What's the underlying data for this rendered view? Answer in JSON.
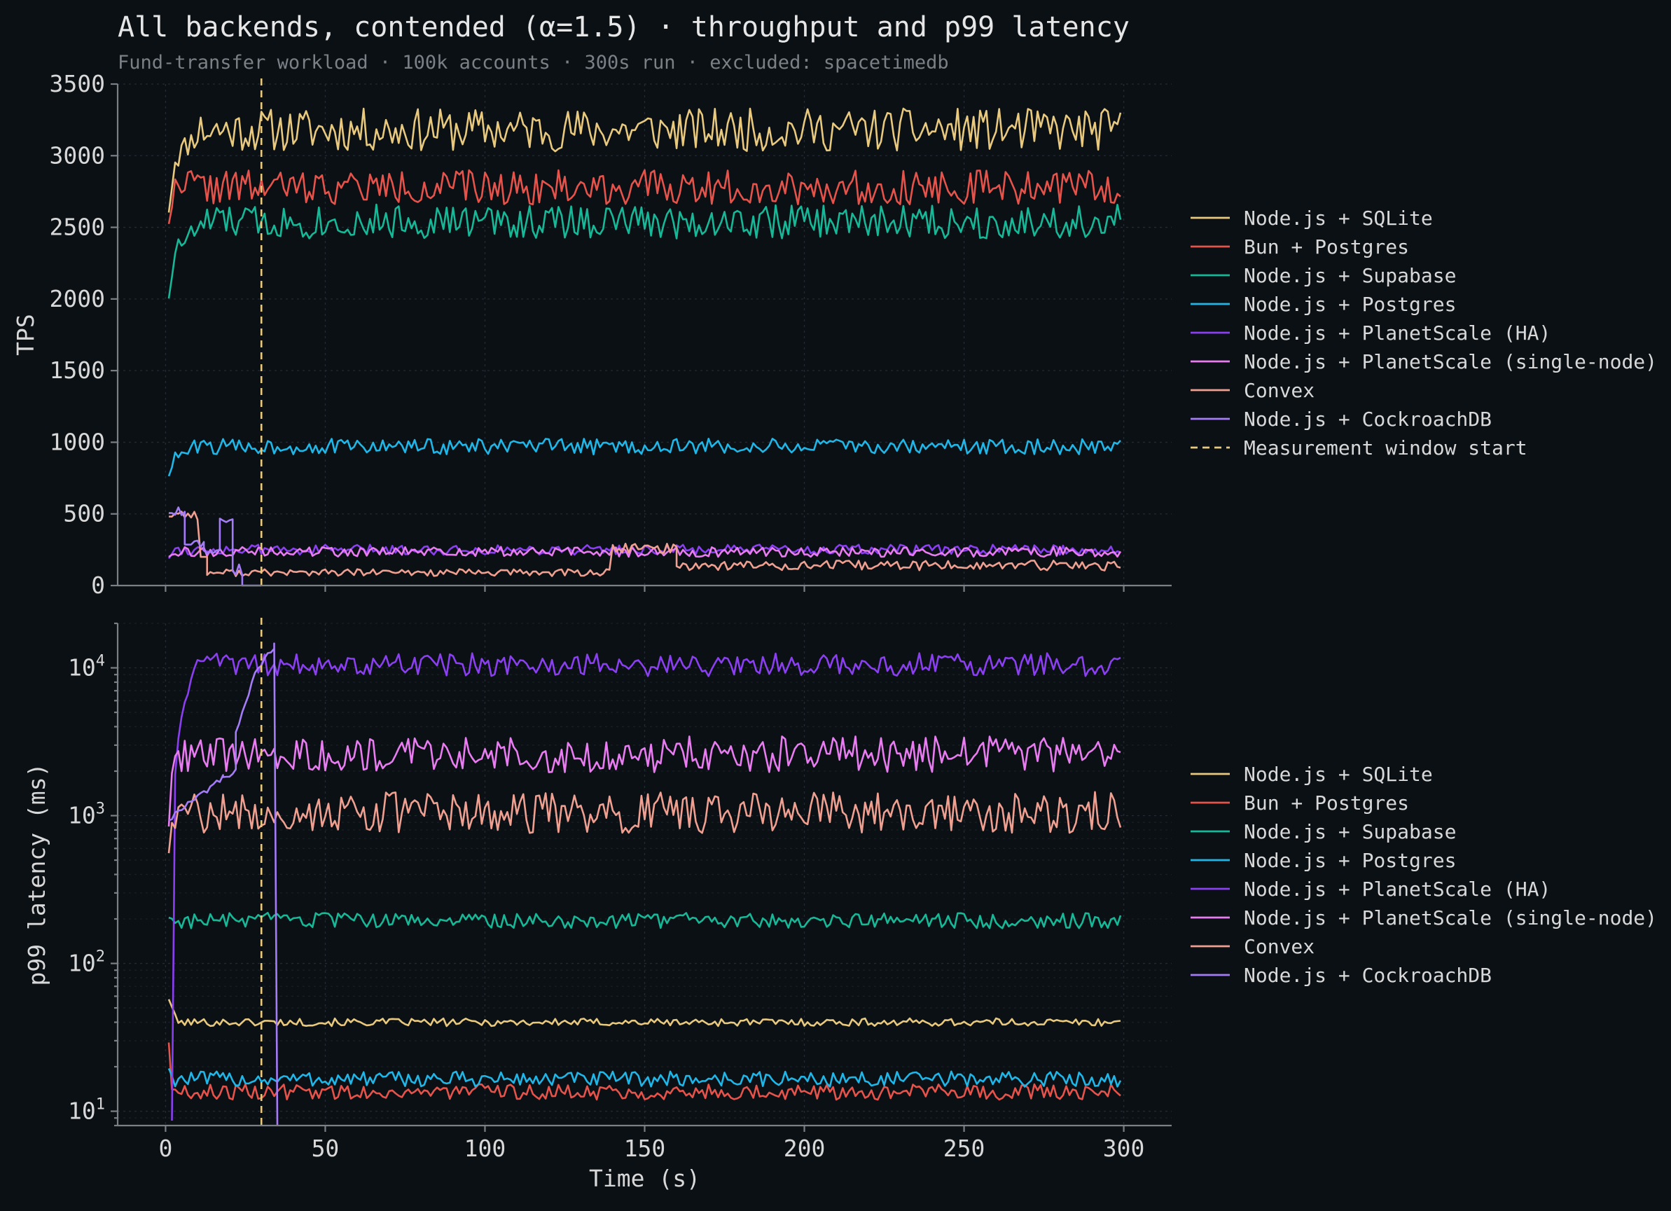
{
  "title": "All backends, contended (α=1.5) · throughput and p99 latency",
  "subtitle": "Fund-transfer workload · 100k accounts · 300s run · excluded: spacetimedb",
  "colors": {
    "background": "#0b1015",
    "sqlite": "#e8c97e",
    "bun_pg": "#e5534b",
    "supabase": "#17b897",
    "node_pg": "#1fb6e8",
    "ps_ha": "#8a3ff0",
    "ps_single": "#e87cf0",
    "convex": "#f0a090",
    "cockroach": "#a47cf6",
    "marker": "#e8c97e"
  },
  "chart_data": [
    {
      "type": "line",
      "panel": "top",
      "ylabel": "TPS",
      "xlabel": "",
      "xlim": [
        -15,
        315
      ],
      "ylim": [
        0,
        3500
      ],
      "yticks": [
        0,
        500,
        1000,
        1500,
        2000,
        2500,
        3000,
        3500
      ],
      "ytick_labels": [
        "0",
        "500",
        "1000",
        "1500",
        "2000",
        "2500",
        "3000",
        "3500"
      ],
      "grid": true,
      "legend_position": "right",
      "vline": {
        "x": 30,
        "name": "Measurement window start",
        "style": "dashed"
      },
      "series": [
        {
          "name": "Node.js + SQLite",
          "color_key": "sqlite",
          "pattern": {
            "start": 1,
            "end": 299,
            "warm": [
              [
                1,
                2650
              ],
              [
                3,
                2980
              ],
              [
                6,
                3060
              ],
              [
                10,
                3150
              ]
            ],
            "base": 3180,
            "noise": 150,
            "seed": 11
          }
        },
        {
          "name": "Bun + Postgres",
          "color_key": "bun_pg",
          "pattern": {
            "start": 1,
            "end": 299,
            "warm": [
              [
                1,
                2560
              ],
              [
                3,
                2780
              ],
              [
                8,
                2850
              ]
            ],
            "base": 2780,
            "noise": 120,
            "seed": 22
          }
        },
        {
          "name": "Node.js + Supabase",
          "color_key": "supabase",
          "pattern": {
            "start": 1,
            "end": 299,
            "warm": [
              [
                1,
                2040
              ],
              [
                3,
                2330
              ],
              [
                6,
                2420
              ],
              [
                12,
                2520
              ]
            ],
            "base": 2540,
            "noise": 120,
            "seed": 33
          }
        },
        {
          "name": "Node.js + Postgres",
          "color_key": "node_pg",
          "pattern": {
            "start": 1,
            "end": 299,
            "warm": [
              [
                1,
                780
              ],
              [
                3,
                900
              ],
              [
                8,
                940
              ]
            ],
            "base": 970,
            "noise": 55,
            "seed": 44
          }
        },
        {
          "name": "Node.js + PlanetScale (HA)",
          "color_key": "ps_ha",
          "pattern": {
            "start": 1,
            "end": 299,
            "warm": [
              [
                1,
                200
              ],
              [
                3,
                260
              ]
            ],
            "base": 250,
            "noise": 35,
            "seed": 55
          }
        },
        {
          "name": "Node.js + PlanetScale (single-node)",
          "color_key": "ps_single",
          "pattern": {
            "start": 1,
            "end": 299,
            "warm": [
              [
                1,
                210
              ],
              [
                3,
                240
              ]
            ],
            "base": 235,
            "noise": 35,
            "seed": 66
          }
        },
        {
          "name": "Convex",
          "color_key": "convex",
          "pattern": {
            "segments": [
              [
                1,
                10,
                500,
                40
              ],
              [
                11,
                13,
                200,
                0
              ],
              [
                13,
                139,
                90,
                25
              ],
              [
                140,
                160,
                260,
                35
              ],
              [
                160,
                299,
                140,
                35
              ]
            ],
            "seed": 77
          }
        },
        {
          "name": "Node.js + CockroachDB",
          "color_key": "cockroach",
          "pattern": {
            "segments": [
              [
                1,
                6,
                520,
                30
              ],
              [
                6,
                12,
                300,
                30
              ],
              [
                12,
                17,
                240,
                20
              ],
              [
                17,
                21,
                460,
                20
              ],
              [
                21,
                24,
                120,
                60
              ],
              [
                24,
                30,
                0,
                0
              ]
            ],
            "seed": 88
          }
        }
      ]
    },
    {
      "type": "line",
      "panel": "bottom",
      "ylabel": "p99 latency (ms)",
      "xlabel": "Time (s)",
      "yscale": "log",
      "xlim": [
        -15,
        315
      ],
      "ylim": [
        8,
        20000
      ],
      "yticks": [
        10,
        100,
        1000,
        10000
      ],
      "ytick_base": "10",
      "ytick_exponents": [
        "1",
        "2",
        "3",
        "4"
      ],
      "xticks": [
        0,
        50,
        100,
        150,
        200,
        250,
        300
      ],
      "xtick_labels": [
        "0",
        "50",
        "100",
        "150",
        "200",
        "250",
        "300"
      ],
      "grid": true,
      "legend_position": "right",
      "vline": {
        "x": 30,
        "style": "dashed"
      },
      "series": [
        {
          "name": "Node.js + SQLite",
          "color_key": "sqlite",
          "pattern": {
            "start": 1,
            "end": 299,
            "warm": [
              [
                1,
                58
              ],
              [
                3,
                44
              ]
            ],
            "base": 40,
            "noise": 0.06,
            "seed": 101
          }
        },
        {
          "name": "Bun + Postgres",
          "color_key": "bun_pg",
          "pattern": {
            "start": 1,
            "end": 299,
            "warm": [
              [
                1,
                30
              ],
              [
                2,
                14
              ]
            ],
            "base": 13.5,
            "noise": 0.12,
            "seed": 102
          }
        },
        {
          "name": "Node.js + Supabase",
          "color_key": "supabase",
          "pattern": {
            "start": 1,
            "end": 299,
            "warm": [
              [
                1,
                210
              ]
            ],
            "base": 195,
            "noise": 0.12,
            "seed": 103
          }
        },
        {
          "name": "Node.js + Postgres",
          "color_key": "node_pg",
          "pattern": {
            "start": 1,
            "end": 299,
            "warm": [
              [
                1,
                20
              ]
            ],
            "base": 16.5,
            "noise": 0.12,
            "seed": 104
          }
        },
        {
          "name": "Node.js + PlanetScale (HA)",
          "color_key": "ps_ha",
          "pattern": {
            "start": 2,
            "end": 299,
            "warm": [
              [
                2,
                9
              ],
              [
                3,
                1800
              ],
              [
                6,
                6000
              ],
              [
                10,
                10500
              ],
              [
                14,
                12000
              ]
            ],
            "base": 10500,
            "noise": 0.18,
            "seed": 105
          }
        },
        {
          "name": "Node.js + PlanetScale (single-node)",
          "color_key": "ps_single",
          "pattern": {
            "start": 1,
            "end": 299,
            "warm": [
              [
                1,
                900
              ],
              [
                3,
                2600
              ]
            ],
            "base": 2600,
            "noise": 0.28,
            "seed": 106
          }
        },
        {
          "name": "Convex",
          "color_key": "convex",
          "pattern": {
            "start": 1,
            "end": 299,
            "warm": [
              [
                1,
                600
              ],
              [
                3,
                950
              ]
            ],
            "base": 1050,
            "noise": 0.32,
            "seed": 107
          }
        },
        {
          "name": "Node.js + CockroachDB",
          "color_key": "cockroach",
          "pattern": {
            "segments_log": [
              [
                1,
                18,
                950,
                1800
              ],
              [
                18,
                22,
                1800,
                2000
              ],
              [
                22,
                28,
                3500,
                9000
              ],
              [
                28,
                34,
                9000,
                14000
              ],
              [
                34,
                35,
                14000,
                8
              ]
            ],
            "seed": 108
          }
        }
      ]
    }
  ]
}
